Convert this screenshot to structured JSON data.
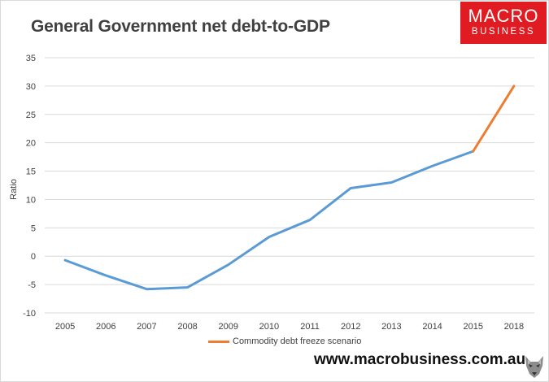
{
  "brand": {
    "logo_line1": "MACRO",
    "logo_line2": "BUSINESS",
    "logo_color": "#e11b22",
    "website": "www.macrobusiness.com.au"
  },
  "chart_data": {
    "type": "line",
    "title": "General Government net debt-to-GDP",
    "xlabel": "",
    "ylabel": "Ratio",
    "categories": [
      "2005",
      "2006",
      "2007",
      "2008",
      "2009",
      "2010",
      "2011",
      "2012",
      "2013",
      "2014",
      "2015",
      "2018"
    ],
    "ylim": [
      -10,
      35
    ],
    "yticks": [
      35,
      30,
      25,
      20,
      15,
      10,
      5,
      0,
      -5,
      -10
    ],
    "grid": true,
    "legend_position": "bottom",
    "series": [
      {
        "name": "General Government net debt-to-GDP",
        "color": "#5b9bd5",
        "values": [
          -0.7,
          -3.4,
          -5.8,
          -5.5,
          -1.5,
          3.4,
          6.4,
          12.0,
          13.0,
          15.9,
          18.5,
          null
        ]
      },
      {
        "name": "Commodity debt freeze scenario",
        "color": "#ed7d31",
        "values": [
          null,
          null,
          null,
          null,
          null,
          null,
          null,
          null,
          null,
          null,
          18.5,
          30.0
        ]
      }
    ]
  }
}
